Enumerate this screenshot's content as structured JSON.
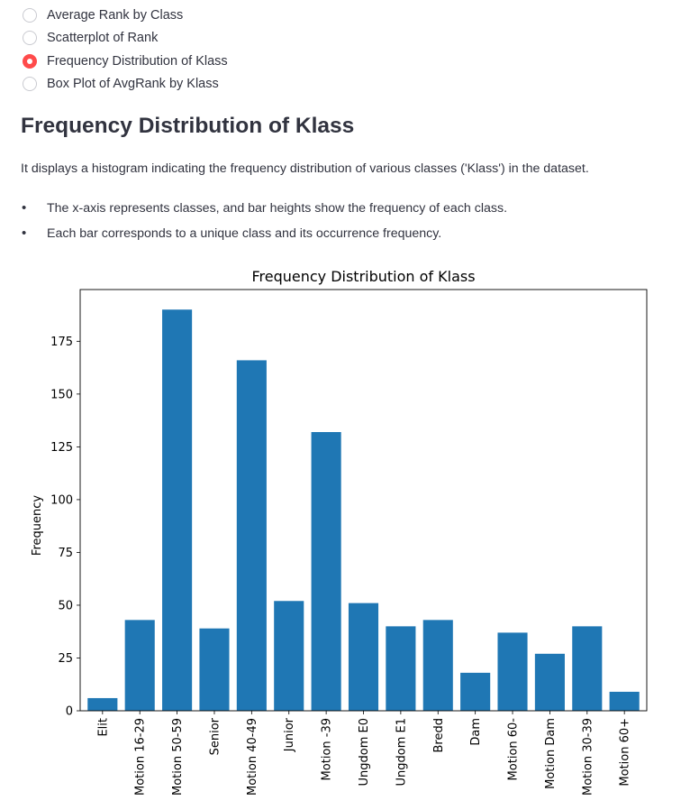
{
  "radio": {
    "options": [
      {
        "label": "Average Rank by Class",
        "selected": false
      },
      {
        "label": "Scatterplot of Rank",
        "selected": false
      },
      {
        "label": "Frequency Distribution of Klass",
        "selected": true
      },
      {
        "label": "Box Plot of AvgRank by Klass",
        "selected": false
      }
    ],
    "accent_color": "#ff4b4b"
  },
  "section": {
    "title": "Frequency Distribution of Klass",
    "description": "It displays a histogram indicating the frequency distribution of various classes ('Klass') in the dataset.",
    "bullets": [
      "The x-axis represents classes, and bar heights show the frequency of each class.",
      "Each bar corresponds to a unique class and its occurrence frequency."
    ]
  },
  "chart_data": {
    "type": "bar",
    "title": "Frequency Distribution of Klass",
    "ylabel": "Frequency",
    "categories": [
      "Elit",
      "Motion 16-29",
      "Motion 50-59",
      "Senior",
      "Motion 40-49",
      "Junior",
      "Motion -39",
      "Ungdom E0",
      "Ungdom E1",
      "Bredd",
      "Dam",
      "Motion 60-",
      "Motion Dam",
      "Motion 30-39",
      "Motion 60+"
    ],
    "values": [
      6,
      43,
      190,
      39,
      166,
      52,
      132,
      51,
      40,
      43,
      18,
      37,
      27,
      40,
      9
    ],
    "ylim": [
      0,
      199.5
    ],
    "yticks": [
      0,
      25,
      50,
      75,
      100,
      125,
      150,
      175
    ],
    "bar_color": "#1f77b4",
    "grid": false
  }
}
